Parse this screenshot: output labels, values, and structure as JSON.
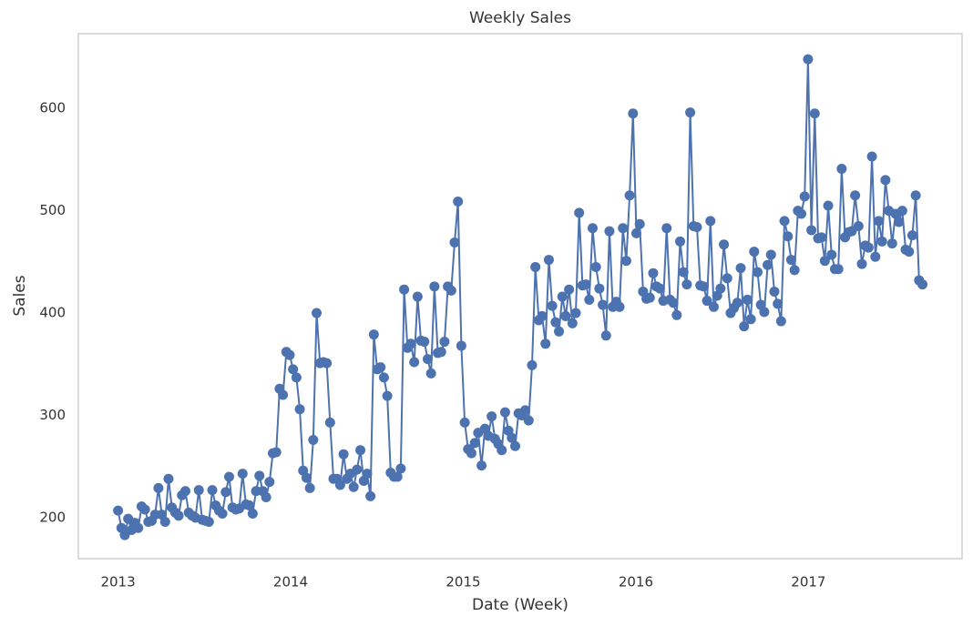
{
  "chart_data": {
    "type": "line",
    "title": "Weekly Sales",
    "x_label": "Date (Week)",
    "y_label": "Sales",
    "color": "#4c72b0",
    "grid": false,
    "markers": true,
    "xlim": [
      2012.77,
      2017.89
    ],
    "xticks": [
      2013,
      2014,
      2015,
      2016,
      2017
    ],
    "ylim": [
      160,
      673
    ],
    "yticks": [
      200,
      300,
      400,
      500,
      600
    ],
    "x": [
      2013.0,
      2013.0195,
      2013.039,
      2013.0585,
      2013.078,
      2013.0975,
      2013.117,
      2013.1365,
      2013.156,
      2013.1755,
      2013.195,
      2013.2145,
      2013.234,
      2013.2535,
      2013.273,
      2013.2925,
      2013.312,
      2013.3315,
      2013.351,
      2013.3705,
      2013.39,
      2013.4095,
      2013.429,
      2013.4485,
      2013.468,
      2013.4875,
      2013.507,
      2013.5265,
      2013.546,
      2013.5655,
      2013.585,
      2013.6045,
      2013.624,
      2013.6435,
      2013.663,
      2013.6825,
      2013.702,
      2013.7215,
      2013.741,
      2013.7605,
      2013.78,
      2013.7995,
      2013.819,
      2013.8385,
      2013.858,
      2013.8775,
      2013.897,
      2013.9165,
      2013.936,
      2013.9555,
      2013.975,
      2013.9945,
      2014.014,
      2014.0335,
      2014.053,
      2014.0725,
      2014.092,
      2014.1115,
      2014.131,
      2014.1505,
      2014.17,
      2014.1895,
      2014.209,
      2014.2285,
      2014.248,
      2014.2675,
      2014.287,
      2014.3065,
      2014.326,
      2014.3455,
      2014.365,
      2014.3845,
      2014.404,
      2014.4235,
      2014.443,
      2014.4625,
      2014.482,
      2014.5015,
      2014.521,
      2014.5405,
      2014.56,
      2014.5795,
      2014.599,
      2014.6185,
      2014.638,
      2014.6575,
      2014.677,
      2014.6965,
      2014.716,
      2014.7355,
      2014.755,
      2014.7745,
      2014.794,
      2014.8135,
      2014.833,
      2014.8525,
      2014.872,
      2014.8915,
      2014.911,
      2014.9305,
      2014.95,
      2014.9695,
      2014.989,
      2015.0085,
      2015.028,
      2015.0475,
      2015.067,
      2015.0865,
      2015.106,
      2015.1255,
      2015.145,
      2015.1645,
      2015.184,
      2015.2035,
      2015.223,
      2015.2425,
      2015.262,
      2015.2815,
      2015.301,
      2015.3205,
      2015.34,
      2015.3595,
      2015.379,
      2015.3985,
      2015.418,
      2015.4375,
      2015.457,
      2015.4765,
      2015.496,
      2015.5155,
      2015.535,
      2015.5545,
      2015.574,
      2015.5935,
      2015.613,
      2015.6325,
      2015.652,
      2015.6715,
      2015.691,
      2015.7105,
      2015.73,
      2015.7495,
      2015.769,
      2015.7885,
      2015.808,
      2015.8275,
      2015.847,
      2015.8665,
      2015.886,
      2015.9055,
      2015.925,
      2015.9445,
      2015.964,
      2015.9835,
      2016.003,
      2016.0225,
      2016.042,
      2016.0615,
      2016.081,
      2016.1005,
      2016.12,
      2016.1395,
      2016.159,
      2016.1785,
      2016.198,
      2016.2175,
      2016.237,
      2016.2565,
      2016.276,
      2016.2955,
      2016.315,
      2016.3345,
      2016.354,
      2016.3735,
      2016.393,
      2016.4125,
      2016.432,
      2016.4515,
      2016.471,
      2016.4905,
      2016.51,
      2016.5295,
      2016.549,
      2016.5685,
      2016.588,
      2016.6075,
      2016.627,
      2016.6465,
      2016.666,
      2016.6855,
      2016.705,
      2016.7245,
      2016.744,
      2016.7635,
      2016.783,
      2016.8025,
      2016.822,
      2016.8415,
      2016.861,
      2016.8805,
      2016.9,
      2016.9195,
      2016.939,
      2016.9585,
      2016.978,
      2016.9975,
      2017.017,
      2017.0365,
      2017.056,
      2017.0755,
      2017.095,
      2017.1145,
      2017.134,
      2017.1535,
      2017.173,
      2017.1925,
      2017.212,
      2017.2315,
      2017.251,
      2017.2705,
      2017.29,
      2017.3095,
      2017.329,
      2017.3485,
      2017.368,
      2017.3875,
      2017.407,
      2017.4265,
      2017.446,
      2017.4655,
      2017.485,
      2017.5045,
      2017.524,
      2017.5435,
      2017.563,
      2017.5825,
      2017.602,
      2017.6215,
      2017.641,
      2017.6605
    ],
    "values": [
      207,
      190,
      183,
      199,
      188,
      195,
      190,
      211,
      208,
      196,
      197,
      203,
      229,
      203,
      196,
      238,
      210,
      205,
      202,
      222,
      226,
      205,
      202,
      200,
      227,
      198,
      197,
      196,
      227,
      212,
      207,
      204,
      225,
      240,
      210,
      208,
      209,
      243,
      213,
      212,
      204,
      226,
      241,
      226,
      220,
      235,
      263,
      264,
      326,
      320,
      362,
      359,
      345,
      337,
      306,
      246,
      239,
      229,
      276,
      400,
      351,
      352,
      351,
      293,
      238,
      238,
      232,
      262,
      238,
      243,
      230,
      247,
      266,
      236,
      243,
      221,
      379,
      345,
      347,
      337,
      319,
      244,
      240,
      240,
      248,
      423,
      366,
      370,
      352,
      416,
      373,
      372,
      355,
      341,
      426,
      361,
      362,
      372,
      426,
      422,
      469,
      509,
      368,
      293,
      267,
      263,
      273,
      283,
      251,
      287,
      280,
      299,
      277,
      272,
      266,
      303,
      285,
      278,
      270,
      302,
      300,
      305,
      295,
      349,
      445,
      393,
      397,
      370,
      452,
      407,
      391,
      382,
      416,
      397,
      423,
      390,
      400,
      498,
      427,
      428,
      413,
      483,
      445,
      424,
      408,
      378,
      480,
      406,
      411,
      406,
      483,
      451,
      515,
      595,
      478,
      487,
      421,
      414,
      415,
      439,
      426,
      424,
      412,
      483,
      413,
      410,
      398,
      470,
      440,
      428,
      596,
      485,
      484,
      427,
      426,
      412,
      490,
      406,
      417,
      424,
      467,
      434,
      400,
      405,
      410,
      444,
      387,
      413,
      394,
      460,
      440,
      408,
      401,
      447,
      457,
      421,
      409,
      392,
      490,
      475,
      452,
      442,
      500,
      497,
      514,
      648,
      481,
      595,
      473,
      474,
      451,
      505,
      457,
      443,
      443,
      541,
      474,
      479,
      480,
      515,
      485,
      448,
      466,
      464,
      553,
      455,
      490,
      470,
      530,
      500,
      468,
      497,
      489,
      500,
      462,
      460,
      476,
      515,
      432,
      428
    ]
  }
}
